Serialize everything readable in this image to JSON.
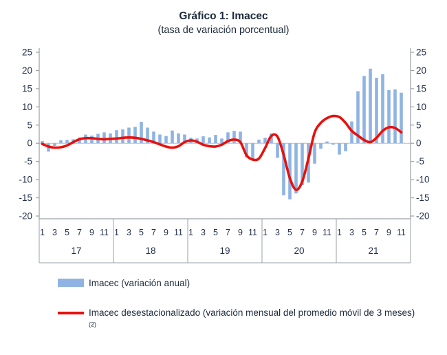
{
  "title": "Gráfico 1: Imacec",
  "subtitle": "(tasa de variación porcentual)",
  "legend": {
    "bar_label": "Imacec (variación anual)",
    "line_label": "Imacec desestacionalizado (variación mensual del promedio móvil de 3 meses)",
    "line_label_sup": "(2)"
  },
  "colors": {
    "bar": "#8fb4e3",
    "line": "#e8100c",
    "axis": "#9aa0a6",
    "zero_line": "#b7bcc2",
    "text": "#22304a"
  },
  "chart_data": {
    "type": "bar",
    "title": "Gráfico 1: Imacec",
    "subtitle": "(tasa de variación porcentual)",
    "start": "2017-01",
    "end": "2021-11",
    "years": [
      "17",
      "18",
      "19",
      "20",
      "21"
    ],
    "months_per_year": [
      12,
      12,
      12,
      12,
      11
    ],
    "month_tick_labels": [
      "1",
      "3",
      "5",
      "7",
      "9",
      "11"
    ],
    "y_ticks": [
      25,
      20,
      15,
      10,
      5,
      0,
      -5,
      -10,
      -15,
      -20
    ],
    "ylim": [
      -20,
      25
    ],
    "grid": false,
    "legend_position": "bottom",
    "series": [
      {
        "name": "Imacec (variación anual)",
        "type": "bar",
        "color": "#8fb4e3",
        "values": [
          0.6,
          -2.3,
          -0.7,
          0.8,
          0.9,
          1.1,
          1.6,
          2.4,
          2.1,
          2.6,
          3.0,
          2.7,
          3.6,
          3.8,
          4.3,
          4.5,
          5.9,
          4.3,
          3.2,
          2.4,
          2.0,
          3.5,
          2.7,
          2.4,
          1.5,
          1.3,
          1.9,
          1.6,
          2.3,
          1.3,
          3.0,
          3.4,
          3.2,
          -3.9,
          -4.5,
          1.0,
          1.5,
          2.7,
          -4.0,
          -14.3,
          -15.4,
          -13.8,
          -11.5,
          -10.8,
          -5.6,
          -1.5,
          0.5,
          -0.4,
          -3.1,
          -2.2,
          6.0,
          14.3,
          18.5,
          20.5,
          18.0,
          19.0,
          14.6,
          14.8,
          13.9
        ]
      },
      {
        "name": "Imacec desestacionalizado (variación mensual del promedio móvil de 3 meses)(2)",
        "type": "line",
        "color": "#e8100c",
        "values": [
          -0.2,
          -0.9,
          -1.2,
          -1.1,
          -0.6,
          0.3,
          1.1,
          1.4,
          1.4,
          1.2,
          1.1,
          1.2,
          1.3,
          1.5,
          1.6,
          1.5,
          1.2,
          0.8,
          0.3,
          -0.3,
          -0.9,
          -1.2,
          -0.8,
          0.3,
          0.8,
          0.4,
          -0.4,
          -0.8,
          -0.9,
          -0.4,
          0.6,
          1.0,
          0.3,
          -3.3,
          -4.5,
          -4.2,
          -1.3,
          2.0,
          1.8,
          -3.2,
          -9.6,
          -12.8,
          -10.5,
          -4.2,
          2.9,
          5.6,
          6.9,
          7.5,
          7.2,
          5.6,
          3.4,
          2.1,
          0.9,
          0.3,
          1.5,
          3.4,
          4.4,
          4.2,
          3.0
        ]
      }
    ]
  }
}
